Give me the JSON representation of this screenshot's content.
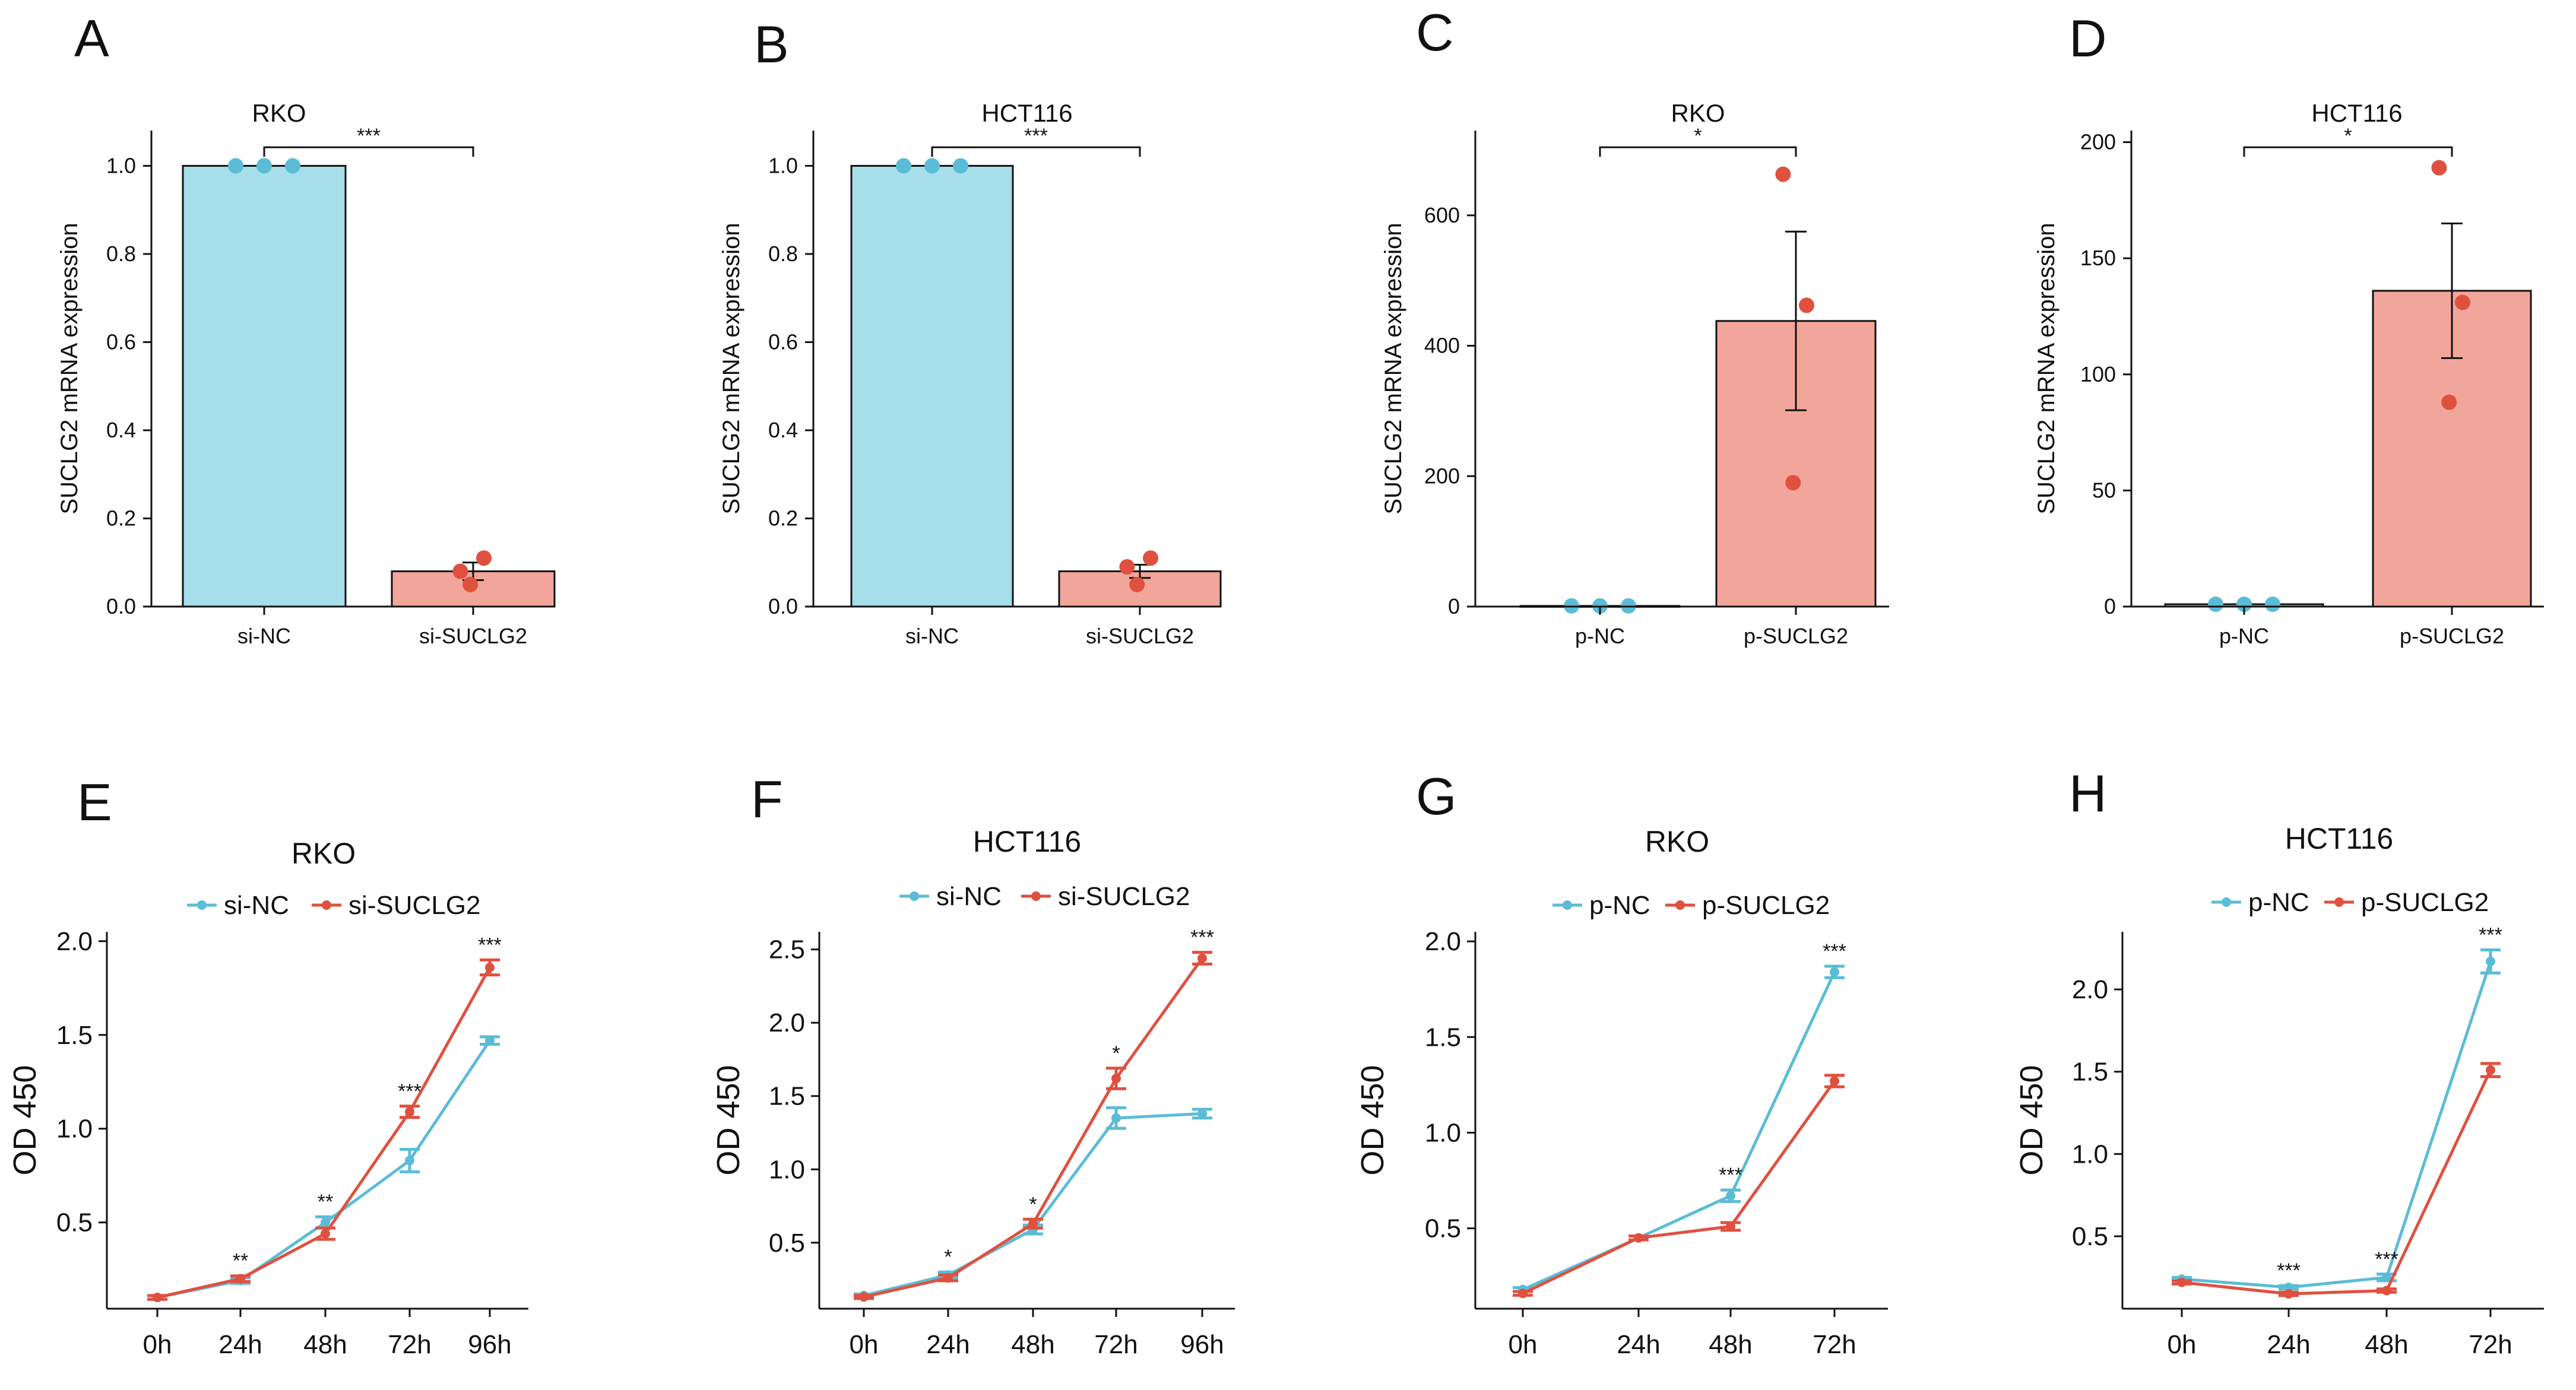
{
  "colors": {
    "teal": "#5BBCD6",
    "teal_light": "#A6DEEA",
    "red": "#E0503F",
    "red_light": "#F2A69B",
    "axis": "#111111"
  },
  "chart_data": [
    {
      "letter": "A",
      "type": "bar",
      "title": "RKO",
      "ylabel": "SUCLG2 mRNA expression",
      "ylim": [
        0,
        1.08
      ],
      "yticks": [
        0,
        0.2,
        0.4,
        0.6,
        0.8,
        1.0
      ],
      "ytick_labels": [
        "0.0",
        "0.2",
        "0.4",
        "0.6",
        "0.8",
        "1.0"
      ],
      "categories": [
        "si-NC",
        "si-SUCLG2"
      ],
      "values": [
        1.0,
        0.08
      ],
      "errors": [
        0,
        0.02
      ],
      "points": [
        [
          1.0,
          1.0,
          1.0
        ],
        [
          0.08,
          0.11,
          0.05
        ]
      ],
      "significance": "***"
    },
    {
      "letter": "B",
      "type": "bar",
      "title": "HCT116",
      "ylabel": "SUCLG2 mRNA expression",
      "ylim": [
        0,
        1.08
      ],
      "yticks": [
        0,
        0.2,
        0.4,
        0.6,
        0.8,
        1.0
      ],
      "ytick_labels": [
        "0.0",
        "0.2",
        "0.4",
        "0.6",
        "0.8",
        "1.0"
      ],
      "categories": [
        "si-NC",
        "si-SUCLG2"
      ],
      "values": [
        1.0,
        0.08
      ],
      "errors": [
        0,
        0.015
      ],
      "points": [
        [
          1.0,
          1.0,
          1.0
        ],
        [
          0.09,
          0.11,
          0.05
        ]
      ],
      "significance": "***"
    },
    {
      "letter": "C",
      "type": "bar",
      "title": "RKO",
      "ylabel": "SUCLG2 mRNA expression",
      "ylim": [
        0,
        730
      ],
      "yticks": [
        0,
        200,
        400,
        600
      ],
      "ytick_labels": [
        "0",
        "200",
        "400",
        "600"
      ],
      "categories": [
        "p-NC",
        "p-SUCLG2"
      ],
      "values": [
        1,
        438
      ],
      "errors": [
        0,
        137
      ],
      "points": [
        [
          1,
          1,
          1
        ],
        [
          663,
          462,
          190
        ]
      ],
      "significance": "*"
    },
    {
      "letter": "D",
      "type": "bar",
      "title": "HCT116",
      "ylabel": "SUCLG2 mRNA expression",
      "ylim": [
        0,
        205
      ],
      "yticks": [
        0,
        50,
        100,
        150,
        200
      ],
      "ytick_labels": [
        "0",
        "50",
        "100",
        "150",
        "200"
      ],
      "categories": [
        "p-NC",
        "p-SUCLG2"
      ],
      "values": [
        1,
        136
      ],
      "errors": [
        0,
        29
      ],
      "points": [
        [
          1,
          1,
          1
        ],
        [
          189,
          131,
          88
        ]
      ],
      "significance": "*"
    },
    {
      "letter": "E",
      "type": "line",
      "title": "RKO",
      "ylabel": "OD 450",
      "ylim": [
        0.04,
        2.05
      ],
      "yticks": [
        0.5,
        1.0,
        1.5,
        2.0
      ],
      "ytick_labels": [
        "0.5",
        "1.0",
        "1.5",
        "2.0"
      ],
      "x": [
        "0h",
        "24h",
        "48h",
        "72h",
        "96h"
      ],
      "series": [
        {
          "name": "si-NC",
          "color": "teal",
          "values": [
            0.1,
            0.19,
            0.5,
            0.83,
            1.47
          ],
          "errors": [
            0.01,
            0.015,
            0.03,
            0.06,
            0.02
          ]
        },
        {
          "name": "si-SUCLG2",
          "color": "red",
          "values": [
            0.1,
            0.2,
            0.44,
            1.09,
            1.86
          ],
          "errors": [
            0.01,
            0.015,
            0.03,
            0.03,
            0.04
          ]
        }
      ],
      "significance": [
        null,
        "**",
        "**",
        "***",
        "***"
      ]
    },
    {
      "letter": "F",
      "type": "line",
      "title": "HCT116",
      "ylabel": "OD 450",
      "ylim": [
        0.05,
        2.62
      ],
      "yticks": [
        0.5,
        1.0,
        1.5,
        2.0,
        2.5
      ],
      "ytick_labels": [
        "0.5",
        "1.0",
        "1.5",
        "2.0",
        "2.5"
      ],
      "x": [
        "0h",
        "24h",
        "48h",
        "72h",
        "96h"
      ],
      "series": [
        {
          "name": "si-NC",
          "color": "teal",
          "values": [
            0.14,
            0.28,
            0.59,
            1.35,
            1.38
          ],
          "errors": [
            0.01,
            0.02,
            0.03,
            0.07,
            0.03
          ]
        },
        {
          "name": "si-SUCLG2",
          "color": "red",
          "values": [
            0.13,
            0.26,
            0.63,
            1.62,
            2.44
          ],
          "errors": [
            0.01,
            0.02,
            0.03,
            0.07,
            0.04
          ]
        }
      ],
      "significance": [
        null,
        "*",
        "*",
        "*",
        "***"
      ]
    },
    {
      "letter": "G",
      "type": "line",
      "title": "RKO",
      "ylabel": "OD 450",
      "ylim": [
        0.08,
        2.05
      ],
      "yticks": [
        0.5,
        1.0,
        1.5,
        2.0
      ],
      "ytick_labels": [
        "0.5",
        "1.0",
        "1.5",
        "2.0"
      ],
      "x": [
        "0h",
        "24h",
        "48h",
        "72h"
      ],
      "series": [
        {
          "name": "p-NC",
          "color": "teal",
          "values": [
            0.18,
            0.45,
            0.67,
            1.84
          ],
          "errors": [
            0.01,
            0.01,
            0.03,
            0.03
          ]
        },
        {
          "name": "p-SUCLG2",
          "color": "red",
          "values": [
            0.16,
            0.45,
            0.51,
            1.27
          ],
          "errors": [
            0.01,
            0.01,
            0.02,
            0.03
          ]
        }
      ],
      "significance": [
        null,
        null,
        "***",
        "***"
      ]
    },
    {
      "letter": "H",
      "type": "line",
      "title": "HCT116",
      "ylabel": "OD 450",
      "ylim": [
        0.06,
        2.35
      ],
      "yticks": [
        0.5,
        1.0,
        1.5,
        2.0
      ],
      "ytick_labels": [
        "0.5",
        "1.0",
        "1.5",
        "2.0"
      ],
      "x": [
        "0h",
        "24h",
        "48h",
        "72h"
      ],
      "series": [
        {
          "name": "p-NC",
          "color": "teal",
          "values": [
            0.24,
            0.19,
            0.25,
            2.17
          ],
          "errors": [
            0.01,
            0.01,
            0.02,
            0.07
          ]
        },
        {
          "name": "p-SUCLG2",
          "color": "red",
          "values": [
            0.22,
            0.15,
            0.17,
            1.51
          ],
          "errors": [
            0.01,
            0.01,
            0.01,
            0.04
          ]
        }
      ],
      "significance": [
        null,
        "***",
        "***",
        "***"
      ]
    }
  ]
}
